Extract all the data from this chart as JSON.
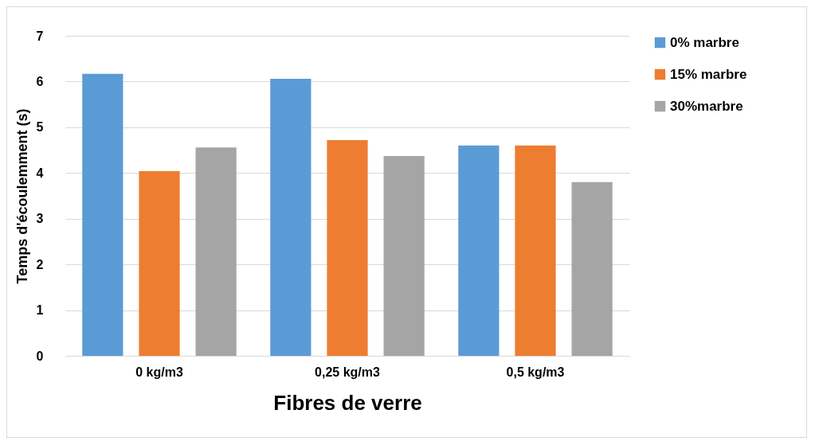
{
  "chart_data": {
    "type": "bar",
    "xlabel": "Fibres de verre",
    "ylabel": "Temps d'écoulemment (s)",
    "categories": [
      "0 kg/m3",
      "0,25 kg/m3",
      "0,5 kg/m3"
    ],
    "series": [
      {
        "name": "0%  marbre",
        "color": "#5b9bd5",
        "values": [
          6.17,
          6.06,
          4.6
        ]
      },
      {
        "name": "15% marbre",
        "color": "#ed7d31",
        "values": [
          4.04,
          4.72,
          4.6
        ]
      },
      {
        "name": "30%marbre",
        "color": "#a5a5a5",
        "values": [
          4.56,
          4.37,
          3.8
        ]
      }
    ],
    "ylim": [
      0,
      7
    ],
    "yticks": [
      0,
      1,
      2,
      3,
      4,
      5,
      6,
      7
    ],
    "grid": "y",
    "legend": "right"
  }
}
